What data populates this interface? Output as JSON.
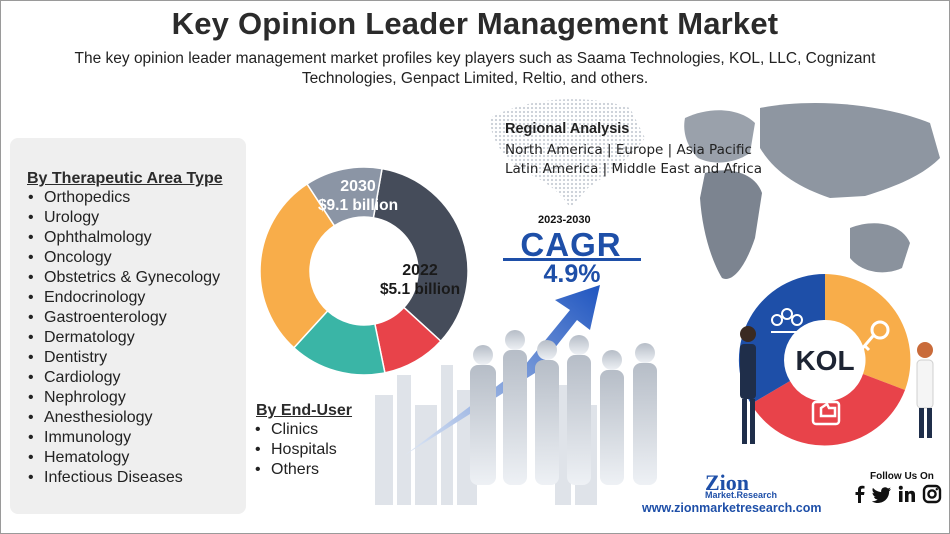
{
  "title": "Key Opinion Leader Management Market",
  "subtitle": "The key opinion leader management market profiles key players such as Saama Technologies, KOL, LLC, Cognizant Technologies, Genpact Limited, Reltio, and others.",
  "therapeutic": {
    "heading": "By Therapeutic Area Type",
    "items": [
      "Orthopedics",
      "Urology",
      "Ophthalmology",
      "Oncology",
      "Obstetrics & Gynecology",
      "Endocrinology",
      "Gastroenterology",
      "Dermatology",
      "Dentistry",
      "Cardiology",
      "Nephrology",
      "Anesthesiology",
      "Immunology",
      "Hematology",
      "Infectious Diseases"
    ]
  },
  "end_user": {
    "heading": "By End-User",
    "items": [
      "Clinics",
      "Hospitals",
      "Others"
    ]
  },
  "regional": {
    "title": "Regional Analysis",
    "line1": "North America | Europe | Asia Pacific",
    "line2": "Latin America | Middle East and Africa"
  },
  "cagr": {
    "period": "2023-2030",
    "label": "CAGR",
    "value": "4.9%"
  },
  "chart_data": {
    "type": "pie",
    "variant": "donut",
    "annotations": [
      {
        "year": "2030",
        "value": "$9.1 billion",
        "value_billion": 9.1
      },
      {
        "year": "2022",
        "value": "$5.1 billion",
        "value_billion": 5.1
      }
    ],
    "slices": [
      {
        "color": "#454c5a",
        "share": 34
      },
      {
        "color": "#e8434a",
        "share": 10
      },
      {
        "color": "#3ab5a6",
        "share": 15
      },
      {
        "color": "#f8ad4a",
        "share": 29
      },
      {
        "color": "#8b95a5",
        "share": 12
      }
    ]
  },
  "kol_badge": "KOL",
  "brand": {
    "name": "Zion",
    "sub": "Market.Research",
    "website": "www.zionmarketresearch.com"
  },
  "social": {
    "label": "Follow Us On",
    "icons": [
      "facebook-icon",
      "twitter-icon",
      "linkedin-icon",
      "instagram-icon"
    ]
  },
  "colors": {
    "accent_blue": "#1e4fa8",
    "title": "#2b2b2b"
  }
}
